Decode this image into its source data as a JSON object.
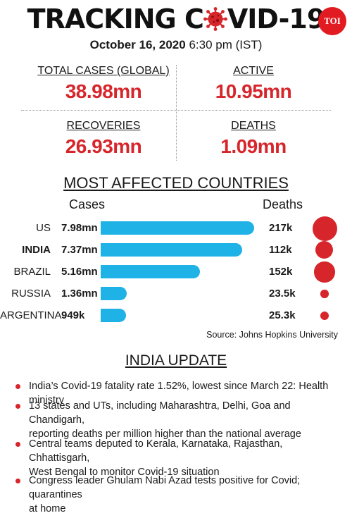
{
  "header": {
    "title_left": "TRACKING C",
    "title_right": "VID-19",
    "logo": "TOI",
    "date": "October 16, 2020",
    "time": "6:30 pm (IST)"
  },
  "stats": {
    "total_cases_label": "TOTAL CASES (GLOBAL)",
    "total_cases_value": "38.98mn",
    "active_label": "ACTIVE",
    "active_value": "10.95mn",
    "recoveries_label": "RECOVERIES",
    "recoveries_value": "26.93mn",
    "deaths_label": "DEATHS",
    "deaths_value": "1.09mn"
  },
  "chart_data": {
    "type": "bar",
    "title": "MOST AFFECTED COUNTRIES",
    "xlabel": "Cases",
    "ylabel": "Deaths",
    "categories": [
      "US",
      "INDIA",
      "BRAZIL",
      "RUSSIA",
      "ARGENTINA"
    ],
    "highlight": "INDIA",
    "cases_values_mn": [
      7.98,
      7.37,
      5.16,
      1.36,
      0.949
    ],
    "cases_labels": [
      "7.98mn",
      "7.37mn",
      "5.16mn",
      "1.36mn",
      "949k"
    ],
    "deaths_values_k": [
      217,
      112,
      152,
      23.5,
      25.3
    ],
    "deaths_labels": [
      "217k",
      "112k",
      "152k",
      "23.5k",
      "25.3k"
    ],
    "source": "Source: Johns Hopkins University",
    "colors": {
      "bar": "#1fb2e6",
      "bubble": "#d7262b"
    }
  },
  "india_update": {
    "heading": "INDIA UPDATE",
    "bullets": [
      [
        "India’s Covid-19 fatality rate 1.52%, lowest since March 22: Health ministry"
      ],
      [
        "13 states and UTs, including Maharashtra, Delhi, Goa and Chandigarh,",
        "reporting deaths per million higher than the national average"
      ],
      [
        "Central teams deputed to Kerala, Karnataka, Rajasthan, Chhattisgarh,",
        "West Bengal to monitor Covid-19 situation"
      ],
      [
        "Congress leader Ghulam Nabi Azad tests positive for Covid; quarantines",
        "at home"
      ]
    ]
  },
  "colors": {
    "accent": "#d7262b",
    "text": "#1a1a1a"
  },
  "icons": {
    "title_o": "coronavirus-icon",
    "bullet": "bullet-dot"
  }
}
